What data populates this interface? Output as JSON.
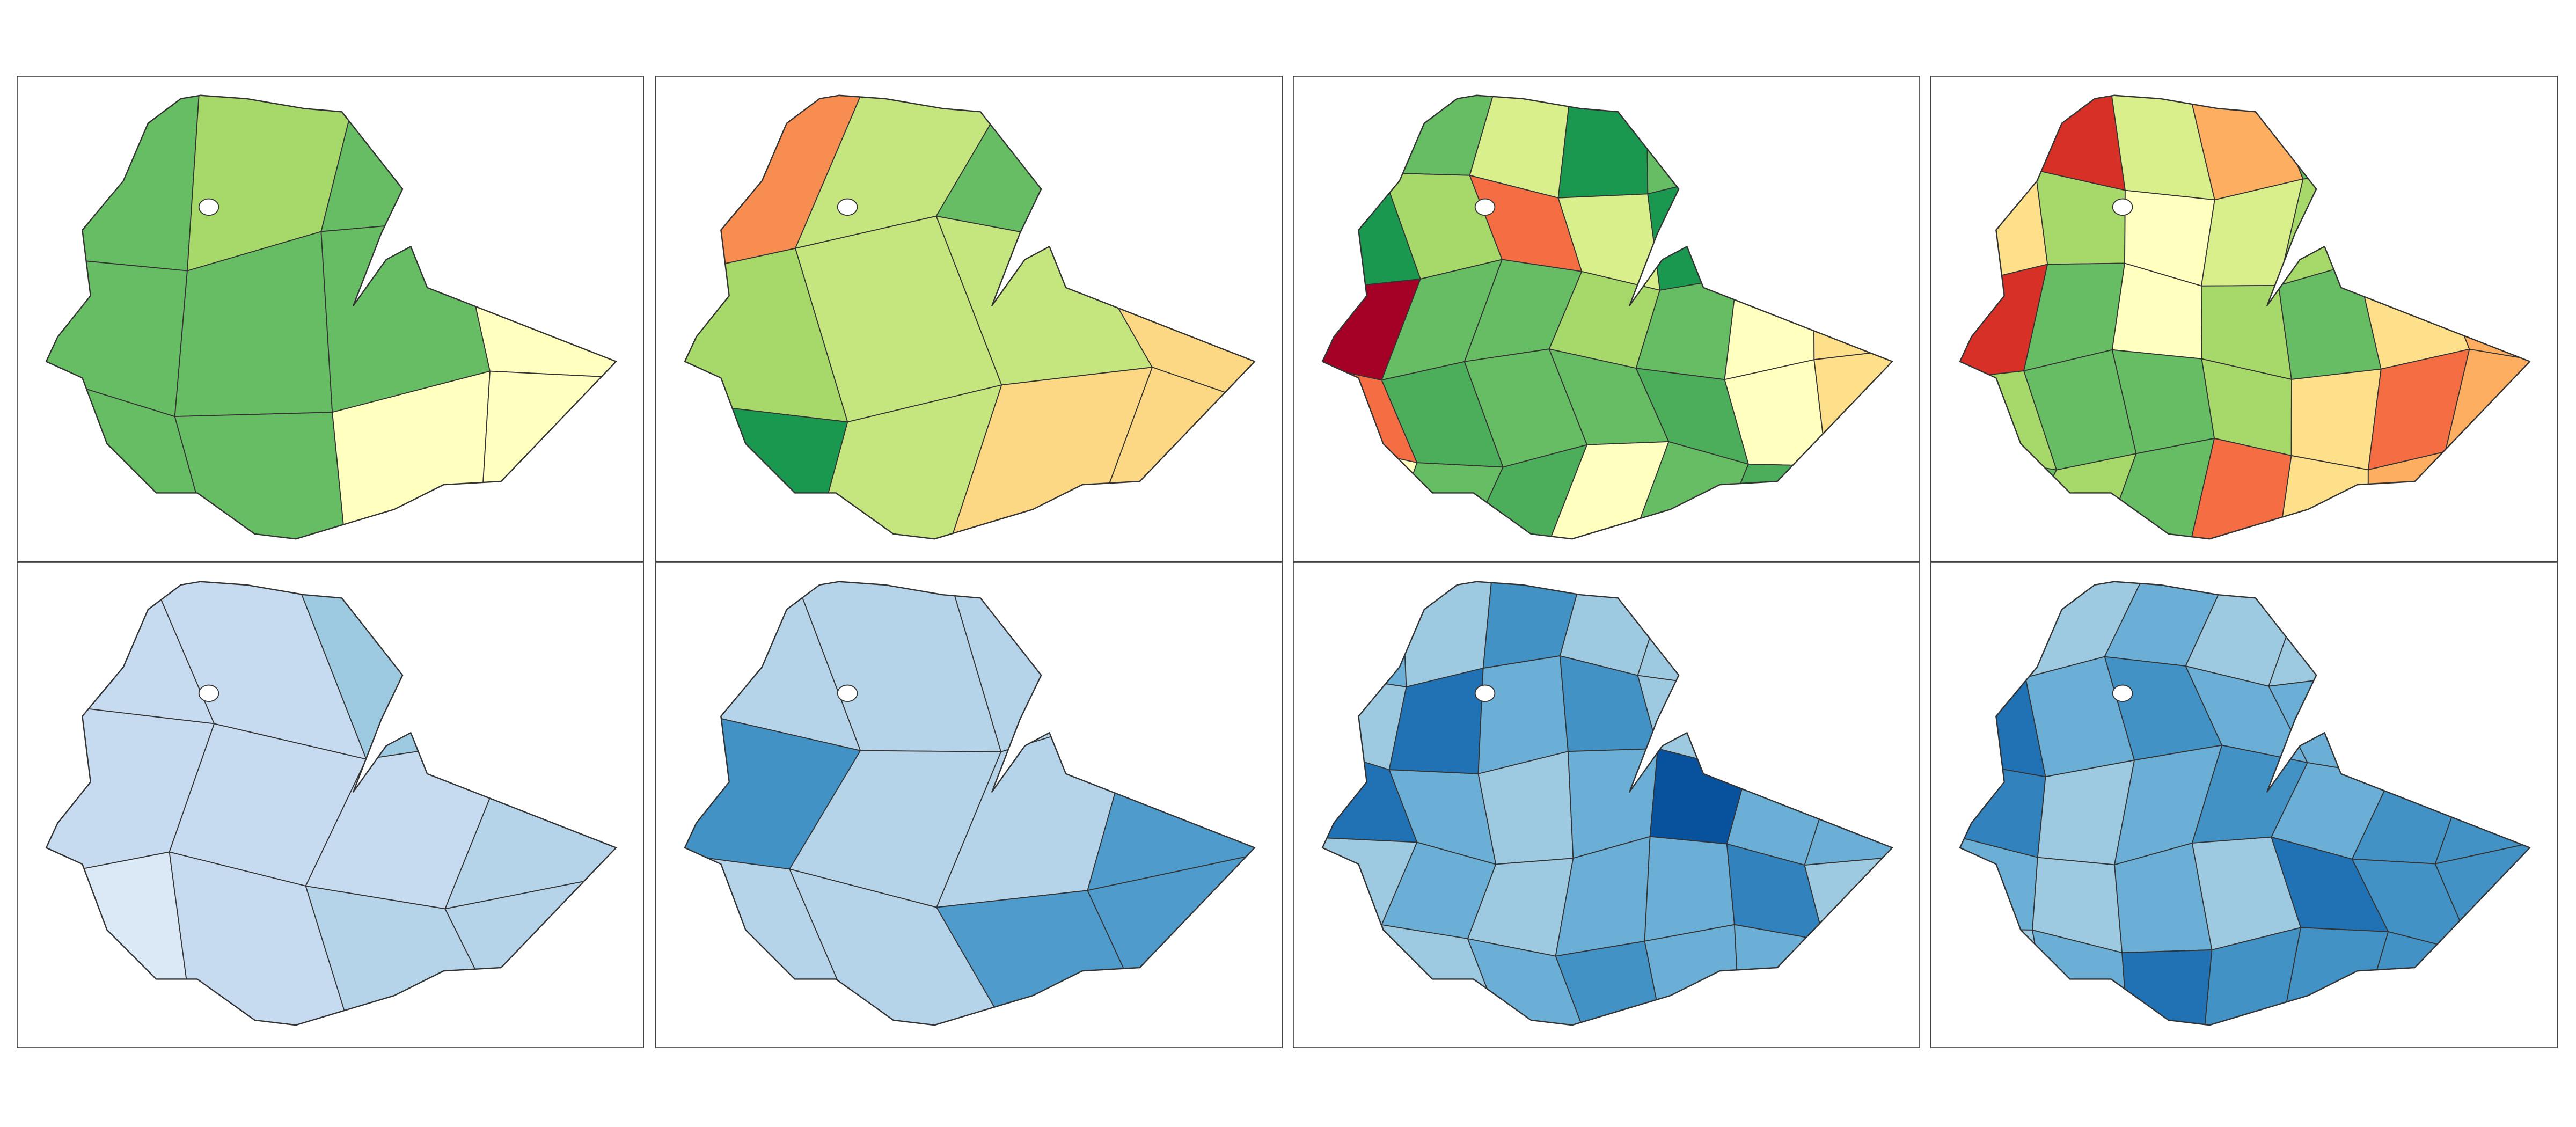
{
  "maps": [
    {
      "fills": [
        "#66bd63",
        "#a6d96a",
        "#66bd63",
        "#ffffbf",
        "#66bd63",
        "#66bd63",
        "#66bd63",
        "#ffffbf",
        "#66bd63",
        "#66bd63",
        "#ffffbf",
        "#ffffbf"
      ]
    },
    {
      "fills": [
        "#f88d52",
        "#c5e67e",
        "#66bd63",
        "#fdd884",
        "#a6d96a",
        "#c5e67e",
        "#c5e67e",
        "#fdd884",
        "#1a9850",
        "#c5e67e",
        "#fdd884",
        "#fdd884"
      ]
    },
    {
      "fills": [
        "#a6d96a",
        "#66bd63",
        "#d9ef8b",
        "#1a9850",
        "#66bd63",
        "#fee08b",
        "#ffffbf",
        "#1a9850",
        "#a6d96a",
        "#f46d43",
        "#d9ef8b",
        "#1a9850",
        "#f46d43",
        "#fee08b",
        "#a50026",
        "#66bd63",
        "#66bd63",
        "#a6d96a",
        "#66bd63",
        "#ffffbf",
        "#fee08b",
        "#f46d43",
        "#4cae5a",
        "#66bd63",
        "#66bd63",
        "#4cae5a",
        "#ffffbf",
        "#fee08b",
        "#ffffbf",
        "#66bd63",
        "#4cae5a",
        "#ffffbf",
        "#66bd63",
        "#4cae5a",
        "#ffffbf"
      ]
    },
    {
      "fills": [
        "#ffffbf",
        "#d73027",
        "#d9ef8b",
        "#fdae61",
        "#66bd63",
        "#fdae61",
        "#fdae61",
        "#fee08b",
        "#a6d96a",
        "#ffffbf",
        "#d9ef8b",
        "#a6d96a",
        "#a50026",
        "#f46d43",
        "#d73027",
        "#66bd63",
        "#ffffbf",
        "#a6d96a",
        "#66bd63",
        "#fee08b",
        "#fdae61",
        "#a6d96a",
        "#66bd63",
        "#66bd63",
        "#a6d96a",
        "#fee08b",
        "#f46d43",
        "#fdae61",
        "#66bd63",
        "#a6d96a",
        "#66bd63",
        "#f46d43",
        "#fee08b",
        "#fdae61",
        "#fdae61"
      ]
    },
    {
      "fills": [
        "#c6dbef",
        "#c6dbef",
        "#9ecae1",
        "#b6d4e9",
        "#c6dbef",
        "#c6dbef",
        "#c6dbef",
        "#b6d4e9",
        "#dbe9f6",
        "#c6dbef",
        "#b6d4e9",
        "#b6d4e9"
      ]
    },
    {
      "fills": [
        "#b6d4e9",
        "#b6d4e9",
        "#b6d4e9",
        "#4292c6",
        "#4292c6",
        "#b6d4e9",
        "#b6d4e9",
        "#4f9bcb",
        "#b6d4e9",
        "#b6d4e9",
        "#4f9bcb",
        "#4f9bcb"
      ]
    },
    {
      "fills": [
        "#6baed6",
        "#9ecae1",
        "#4292c6",
        "#9ecae1",
        "#9ecae1",
        "#6baed6",
        "#9ecae1",
        "#9ecae1",
        "#2171b5",
        "#6baed6",
        "#4292c6",
        "#9ecae1",
        "#9ecae1",
        "#6baed6",
        "#2171b5",
        "#6baed6",
        "#9ecae1",
        "#6baed6",
        "#08519c",
        "#6baed6",
        "#6baed6",
        "#9ecae1",
        "#6baed6",
        "#9ecae1",
        "#6baed6",
        "#6baed6",
        "#3182bd",
        "#9ecae1",
        "#6baed6",
        "#9ecae1",
        "#6baed6",
        "#4292c6",
        "#6baed6",
        "#6baed6",
        "#9ecae1"
      ]
    },
    {
      "fills": [
        "#2171b5",
        "#9ecae1",
        "#6baed6",
        "#9ecae1",
        "#9ecae1",
        "#6baed6",
        "#9ecae1",
        "#2171b5",
        "#6baed6",
        "#4292c6",
        "#6baed6",
        "#6baed6",
        "#c6dbef",
        "#4292c6",
        "#3182bd",
        "#9ecae1",
        "#6baed6",
        "#4292c6",
        "#6baed6",
        "#4292c6",
        "#4292c6",
        "#6baed6",
        "#9ecae1",
        "#6baed6",
        "#9ecae1",
        "#2171b5",
        "#4292c6",
        "#4292c6",
        "#9ecae1",
        "#6baed6",
        "#2171b5",
        "#4292c6",
        "#4292c6",
        "#4292c6",
        "#4292c6"
      ]
    }
  ]
}
